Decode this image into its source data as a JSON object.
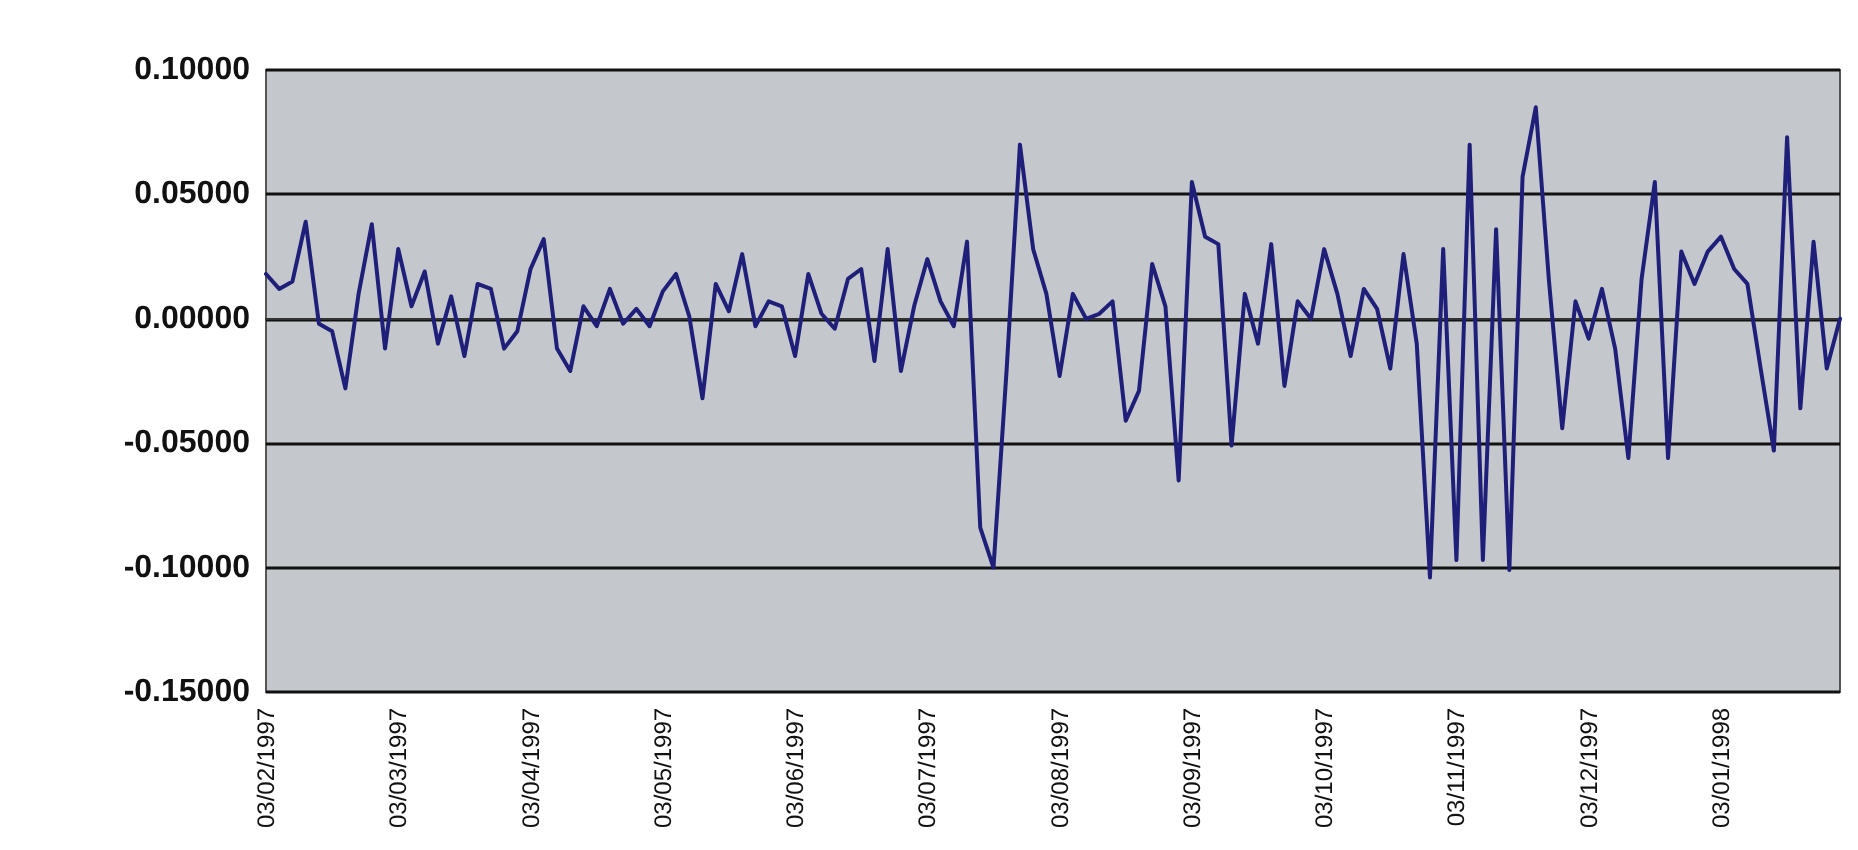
{
  "chart_data": {
    "type": "line",
    "categories": [
      "03/02/1997",
      null,
      null,
      null,
      null,
      null,
      null,
      null,
      null,
      null,
      "03/03/1997",
      null,
      null,
      null,
      null,
      null,
      null,
      null,
      null,
      null,
      "03/04/1997",
      null,
      null,
      null,
      null,
      null,
      null,
      null,
      null,
      null,
      "03/05/1997",
      null,
      null,
      null,
      null,
      null,
      null,
      null,
      null,
      null,
      "03/06/1997",
      null,
      null,
      null,
      null,
      null,
      null,
      null,
      null,
      null,
      "03/07/1997",
      null,
      null,
      null,
      null,
      null,
      null,
      null,
      null,
      null,
      "03/08/1997",
      null,
      null,
      null,
      null,
      null,
      null,
      null,
      null,
      null,
      "03/09/1997",
      null,
      null,
      null,
      null,
      null,
      null,
      null,
      null,
      null,
      "03/10/1997",
      null,
      null,
      null,
      null,
      null,
      null,
      null,
      null,
      null,
      "03/11/1997",
      null,
      null,
      null,
      null,
      null,
      null,
      null,
      null,
      null,
      "03/12/1997",
      null,
      null,
      null,
      null,
      null,
      null,
      null,
      null,
      null,
      "03/01/1998",
      null,
      null,
      null,
      null,
      null,
      null,
      null,
      null,
      null
    ],
    "series": [
      {
        "color": "#1f1f7a",
        "values": [
          0.018,
          0.012,
          0.015,
          0.039,
          -0.002,
          -0.005,
          -0.028,
          0.01,
          0.038,
          -0.012,
          0.028,
          0.005,
          0.019,
          -0.01,
          0.009,
          -0.015,
          0.014,
          0.012,
          -0.012,
          -0.005,
          0.02,
          0.032,
          -0.012,
          -0.021,
          0.005,
          -0.003,
          0.012,
          -0.002,
          0.004,
          -0.003,
          0.011,
          0.018,
          0.001,
          -0.032,
          0.014,
          0.003,
          0.026,
          -0.003,
          0.007,
          0.005,
          -0.015,
          0.018,
          0.002,
          -0.004,
          0.016,
          0.02,
          -0.017,
          0.028,
          -0.021,
          0.005,
          0.024,
          0.007,
          -0.003,
          0.031,
          -0.084,
          -0.1,
          -0.02,
          0.07,
          0.028,
          0.01,
          -0.023,
          0.01,
          0,
          0.002,
          0.007,
          -0.041,
          -0.029,
          0.022,
          0.005,
          -0.065,
          0.055,
          0.033,
          0.03,
          -0.051,
          0.01,
          -0.01,
          0.03,
          -0.027,
          0.007,
          0,
          0.028,
          0.01,
          -0.015,
          0.012,
          0.004,
          -0.02,
          0.026,
          -0.01,
          -0.104,
          0.028,
          -0.097,
          0.07,
          -0.097,
          0.036,
          -0.101,
          0.057,
          0.085,
          0.015,
          -0.044,
          0.007,
          -0.008,
          0.012,
          -0.012,
          -0.056,
          0.016,
          0.055,
          -0.056,
          0.027,
          0.014,
          0.027,
          0.033,
          0.02,
          0.014,
          -0.02,
          -0.053,
          0.073,
          -0.036,
          0.031,
          -0.02,
          0
        ]
      }
    ],
    "ylim": [
      -0.15,
      0.1
    ],
    "yticks": [
      {
        "value": -0.15,
        "label": "-0.15000"
      },
      {
        "value": -0.1,
        "label": "-0.10000"
      },
      {
        "value": -0.05,
        "label": "-0.05000"
      },
      {
        "value": 0,
        "label": "0.00000"
      },
      {
        "value": 0.05,
        "label": "0.05000"
      },
      {
        "value": 0.1,
        "label": "0.10000"
      }
    ],
    "grid": "y",
    "marker": "none",
    "line_style": "solid"
  }
}
